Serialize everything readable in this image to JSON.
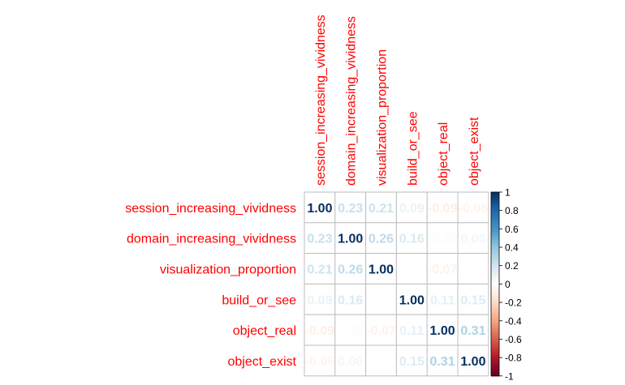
{
  "chart_data": {
    "type": "heatmap",
    "title": "",
    "variables": [
      "session_increasing_vividness",
      "domain_increasing_vividness",
      "visualization_proportion",
      "build_or_see",
      "object_real",
      "object_exist"
    ],
    "matrix": [
      [
        1.0,
        0.23,
        0.21,
        0.09,
        -0.09,
        -0.06
      ],
      [
        0.23,
        1.0,
        0.26,
        0.16,
        -0.02,
        0.06
      ],
      [
        0.21,
        0.26,
        1.0,
        0.0,
        -0.07,
        0.0
      ],
      [
        0.09,
        0.16,
        0.0,
        1.0,
        0.11,
        0.15
      ],
      [
        -0.09,
        -0.02,
        -0.07,
        0.11,
        1.0,
        0.31
      ],
      [
        -0.06,
        0.06,
        0.0,
        0.15,
        0.31,
        1.0
      ]
    ],
    "cell_labels": [
      [
        "1.00",
        "0.23",
        "0.21",
        "0.09",
        "-0.09",
        "-0.06"
      ],
      [
        "0.23",
        "1.00",
        "0.26",
        "0.16",
        "-0.02",
        "0.06"
      ],
      [
        "0.21",
        "0.26",
        "1.00",
        "",
        "-0.07",
        ""
      ],
      [
        "0.09",
        "0.16",
        "",
        "1.00",
        "0.11",
        "0.15"
      ],
      [
        "-0.09",
        "-0.02",
        "-0.07",
        "0.11",
        "1.00",
        "0.31"
      ],
      [
        "-0.06",
        "0.06",
        "",
        "0.15",
        "0.31",
        "1.00"
      ]
    ],
    "colorbar": {
      "range": [
        -1,
        1
      ],
      "ticks": [
        "1",
        "0.8",
        "0.6",
        "0.4",
        "0.2",
        "0",
        "-0.2",
        "-0.4",
        "-0.6",
        "-0.8",
        "-1"
      ]
    },
    "colors": {
      "label_color": "#ff0000",
      "positive_strong": "#053061",
      "positive_light": "#d1e5f0",
      "neutral": "#ffffff",
      "negative_light": "#fddbc7",
      "negative_strong": "#67001f",
      "grid": "#bebebe"
    }
  }
}
